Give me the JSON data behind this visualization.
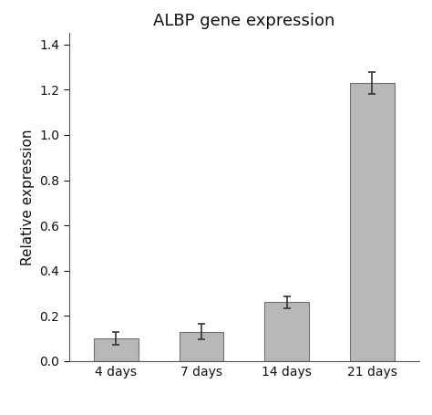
{
  "title": "ALBP gene expression",
  "ylabel": "Relative expression",
  "categories": [
    "4 days",
    "7 days",
    "14 days",
    "21 days"
  ],
  "values": [
    0.1,
    0.13,
    0.26,
    1.23
  ],
  "errors": [
    0.03,
    0.035,
    0.025,
    0.05
  ],
  "bar_color": "#b8b8b8",
  "bar_edgecolor": "#707070",
  "ylim": [
    0,
    1.45
  ],
  "yticks": [
    0.0,
    0.2,
    0.4,
    0.6,
    0.8,
    1.0,
    1.2,
    1.4
  ],
  "bar_width": 0.52,
  "title_fontsize": 13,
  "label_fontsize": 11,
  "tick_fontsize": 10,
  "background_color": "#ffffff",
  "error_capsize": 3,
  "error_linewidth": 1.2,
  "error_color": "#333333"
}
